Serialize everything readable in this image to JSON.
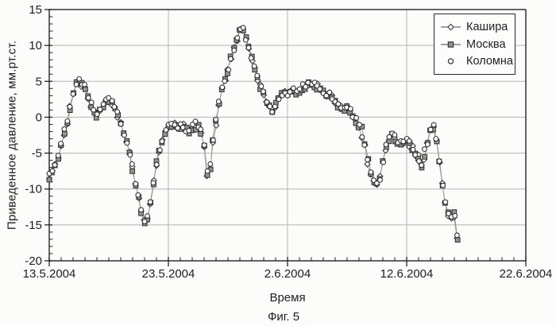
{
  "figure_caption": "Фиг. 5",
  "colors": {
    "axis": "#242424",
    "grid": "#b4b4b4",
    "text": "#1e1e1e",
    "series_line": "#9b9b9b",
    "marker_stroke": "#3a3a3a",
    "marker_fill": "#ffffff",
    "square_fill": "#949494",
    "background": "#fcfcfb"
  },
  "chart_data": {
    "type": "scatter",
    "title": "",
    "xlabel": "Время",
    "ylabel": "Приведенное давление, мм.рт.ст.",
    "x_tick_labels": [
      "13.5.2004",
      "23.5.2004",
      "2.6.2004",
      "12.6.2004",
      "22.6.2004"
    ],
    "x_tick_days": [
      0,
      10,
      20,
      30,
      40
    ],
    "xlim_days": [
      0,
      40
    ],
    "x_minor_step_days": 1,
    "ylim": [
      -20,
      15
    ],
    "y_tick_step": 5,
    "y_minor_step": 1,
    "grid": true,
    "legend_position": "top-right",
    "sample_interval_days": 0.25,
    "series": [
      {
        "name": "Кашира",
        "marker": "diamond",
        "line": true,
        "seed": 101,
        "bias": 0
      },
      {
        "name": "Москва",
        "marker": "square",
        "line": true,
        "seed": 202,
        "bias": -0.1
      },
      {
        "name": "Коломна",
        "marker": "circle",
        "line": false,
        "seed": 303,
        "bias": 0.1
      }
    ],
    "curve_keypoints_day_value": [
      [
        0,
        -8.3
      ],
      [
        0.25,
        -7.6
      ],
      [
        0.5,
        -6.6
      ],
      [
        0.75,
        -5.4
      ],
      [
        1,
        -3.9
      ],
      [
        1.25,
        -2.2
      ],
      [
        1.5,
        -0.6
      ],
      [
        1.75,
        1.4
      ],
      [
        2,
        3.3
      ],
      [
        2.2,
        4.6
      ],
      [
        2.4,
        5.2
      ],
      [
        2.6,
        4.9
      ],
      [
        2.8,
        4.4
      ],
      [
        3,
        4.1
      ],
      [
        3.2,
        3.2
      ],
      [
        3.4,
        2.2
      ],
      [
        3.6,
        1.2
      ],
      [
        3.8,
        0.5
      ],
      [
        4,
        0.3
      ],
      [
        4.2,
        0.7
      ],
      [
        4.5,
        1.4
      ],
      [
        4.8,
        2.1
      ],
      [
        5,
        2.3
      ],
      [
        5.2,
        2.1
      ],
      [
        5.5,
        1.2
      ],
      [
        5.8,
        0.1
      ],
      [
        6.1,
        -1.4
      ],
      [
        6.4,
        -3.0
      ],
      [
        6.7,
        -4.8
      ],
      [
        7,
        -7.0
      ],
      [
        7.3,
        -9.6
      ],
      [
        7.6,
        -12.2
      ],
      [
        7.9,
        -14.1
      ],
      [
        8.1,
        -14.8
      ],
      [
        8.3,
        -13.8
      ],
      [
        8.5,
        -11.8
      ],
      [
        8.7,
        -9.6
      ],
      [
        9,
        -6.7
      ],
      [
        9.3,
        -4.3
      ],
      [
        9.6,
        -2.5
      ],
      [
        9.9,
        -1.5
      ],
      [
        10.2,
        -1.0
      ],
      [
        10.5,
        -1.1
      ],
      [
        10.8,
        -1.4
      ],
      [
        11.1,
        -1.1
      ],
      [
        11.4,
        -1.5
      ],
      [
        11.7,
        -2.2
      ],
      [
        12,
        -1.4
      ],
      [
        12.3,
        -1.7
      ],
      [
        12.6,
        -1.1
      ],
      [
        12.9,
        -2.6
      ],
      [
        13.1,
        -5.0
      ],
      [
        13.3,
        -9.0
      ],
      [
        13.45,
        -8.0
      ],
      [
        13.6,
        -5.0
      ],
      [
        13.8,
        -2.6
      ],
      [
        14,
        -0.8
      ],
      [
        14.2,
        1.2
      ],
      [
        14.4,
        3.3
      ],
      [
        14.6,
        4.6
      ],
      [
        14.9,
        5.8
      ],
      [
        15.2,
        7.4
      ],
      [
        15.5,
        9.4
      ],
      [
        15.8,
        11.2
      ],
      [
        16,
        12.2
      ],
      [
        16.2,
        12.3
      ],
      [
        16.45,
        11.3
      ],
      [
        16.7,
        9.9
      ],
      [
        17,
        8.2
      ],
      [
        17.3,
        6.5
      ],
      [
        17.6,
        4.8
      ],
      [
        17.9,
        3.5
      ],
      [
        18.2,
        2.5
      ],
      [
        18.5,
        1.4
      ],
      [
        18.75,
        0.9
      ],
      [
        19,
        1.5
      ],
      [
        19.3,
        2.7
      ],
      [
        19.6,
        3.5
      ],
      [
        20,
        3.3
      ],
      [
        20.4,
        3.9
      ],
      [
        20.8,
        3.5
      ],
      [
        21.2,
        4.1
      ],
      [
        21.6,
        4.5
      ],
      [
        22,
        4.8
      ],
      [
        22.3,
        4.6
      ],
      [
        22.7,
        4.0
      ],
      [
        23.1,
        3.3
      ],
      [
        23.5,
        3.0
      ],
      [
        23.9,
        2.5
      ],
      [
        24.3,
        1.7
      ],
      [
        24.7,
        1.2
      ],
      [
        25,
        1.4
      ],
      [
        25.3,
        0.8
      ],
      [
        25.7,
        -0.3
      ],
      [
        26,
        -1.4
      ],
      [
        26.3,
        -2.8
      ],
      [
        26.6,
        -4.6
      ],
      [
        26.9,
        -7.0
      ],
      [
        27.2,
        -8.9
      ],
      [
        27.45,
        -9.5
      ],
      [
        27.7,
        -8.6
      ],
      [
        27.95,
        -6.6
      ],
      [
        28.2,
        -4.6
      ],
      [
        28.45,
        -3.1
      ],
      [
        28.7,
        -2.5
      ],
      [
        29,
        -2.9
      ],
      [
        29.3,
        -3.5
      ],
      [
        29.6,
        -3.1
      ],
      [
        29.9,
        -3.3
      ],
      [
        30.2,
        -3.7
      ],
      [
        30.5,
        -4.3
      ],
      [
        30.8,
        -5.3
      ],
      [
        31.1,
        -6.3
      ],
      [
        31.3,
        -6.6
      ],
      [
        31.55,
        -5.3
      ],
      [
        31.8,
        -3.2
      ],
      [
        32,
        -1.6
      ],
      [
        32.15,
        -1.1
      ],
      [
        32.35,
        -2.0
      ],
      [
        32.55,
        -3.8
      ],
      [
        32.75,
        -6.2
      ],
      [
        32.95,
        -8.8
      ],
      [
        33.15,
        -11.0
      ],
      [
        33.35,
        -12.7
      ],
      [
        33.55,
        -13.6
      ],
      [
        33.75,
        -13.7
      ],
      [
        33.9,
        -13.4
      ],
      [
        34.05,
        -14.6
      ],
      [
        34.15,
        -15.6
      ],
      [
        34.25,
        -16.6
      ],
      [
        34.35,
        -17.4
      ]
    ]
  }
}
